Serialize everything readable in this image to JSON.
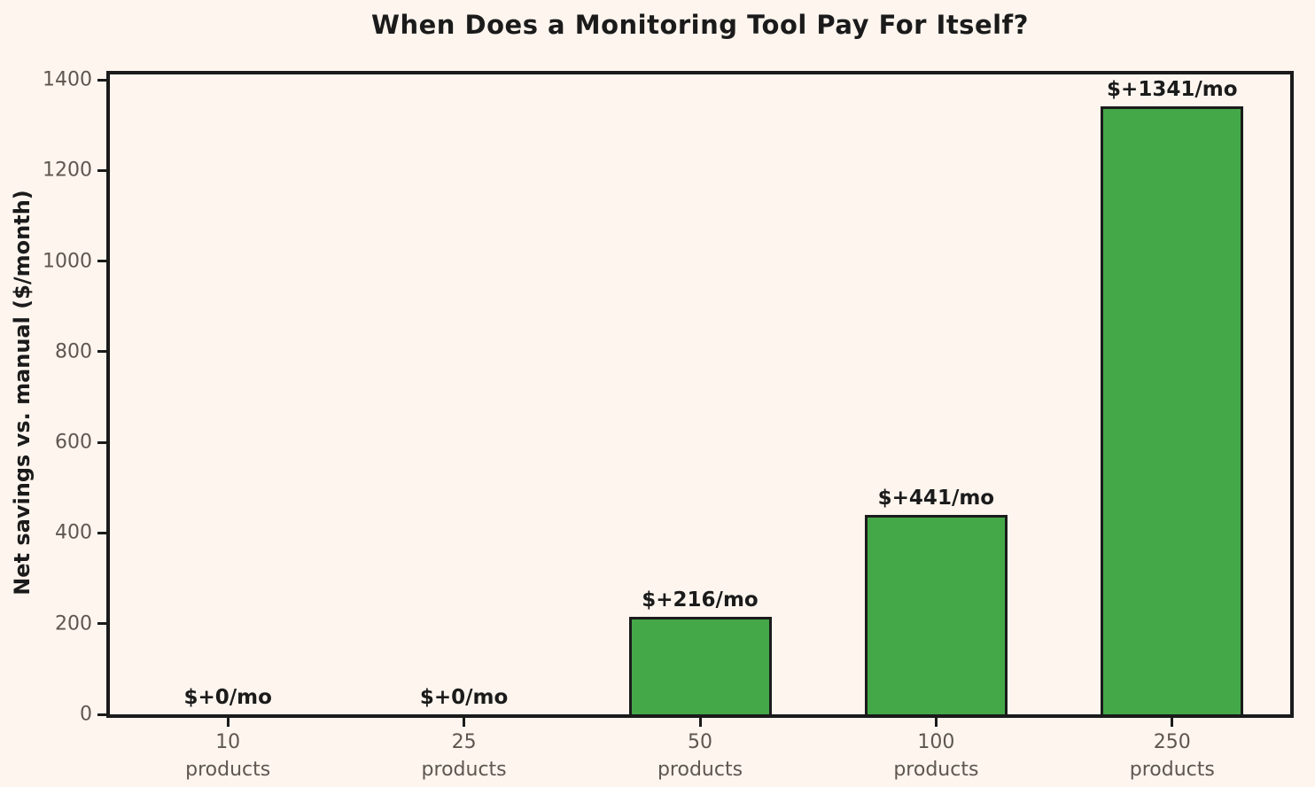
{
  "figure": {
    "background_color": "#fdf5ee",
    "text_color": "#1b1b1b",
    "tick_label_color": "#5d5750"
  },
  "chart_data": {
    "type": "bar",
    "title": "When Does a Monitoring Tool Pay For Itself?",
    "xlabel": "",
    "ylabel": "Net savings vs. manual ($/month)",
    "categories": [
      "10\nproducts",
      "25\nproducts",
      "50\nproducts",
      "100\nproducts",
      "250\nproducts"
    ],
    "values": [
      0,
      0,
      216,
      441,
      1341
    ],
    "bar_labels": [
      "$+0/mo",
      "$+0/mo",
      "$+216/mo",
      "$+441/mo",
      "$+1341/mo"
    ],
    "yticks": [
      0,
      200,
      400,
      600,
      800,
      1000,
      1200,
      1400
    ],
    "ylim": [
      0,
      1412
    ],
    "grid": false,
    "legend": null,
    "bar_color": "#44a848",
    "bar_edge_color": "#1b1b1b",
    "spine_color": "#1b1b1b",
    "tick_color": "#1b1b1b"
  }
}
